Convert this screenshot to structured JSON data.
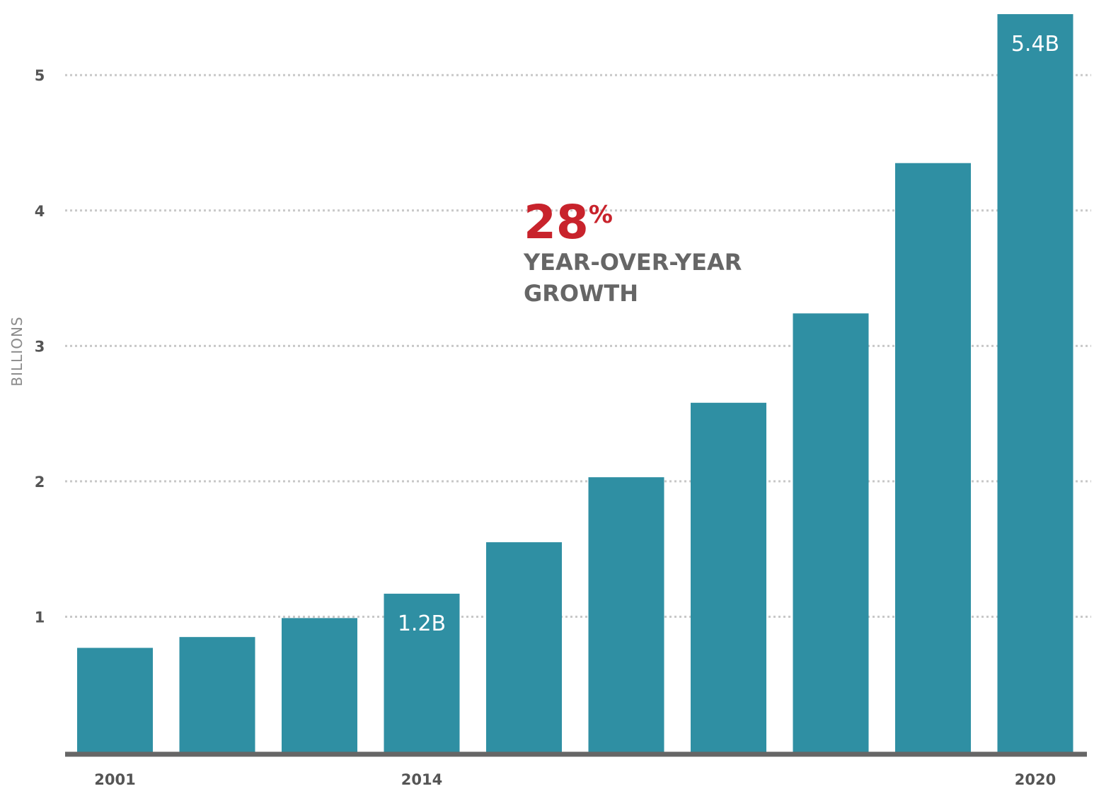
{
  "chart_data": {
    "type": "bar",
    "title": "",
    "xlabel": "",
    "ylabel": "BILLIONS",
    "ylim": [
      0,
      5.45
    ],
    "yticks": [
      1,
      2,
      3,
      4,
      5
    ],
    "grid": true,
    "x_tick_labels": [
      "2001",
      "",
      "",
      "2014",
      "",
      "",
      "",
      "",
      "",
      "2020"
    ],
    "values": [
      0.77,
      0.85,
      0.99,
      1.17,
      1.55,
      2.03,
      2.58,
      3.24,
      4.35,
      5.45
    ],
    "data_labels": [
      "",
      "",
      "",
      "1.2B",
      "",
      "",
      "",
      "",
      "",
      "5.4B"
    ],
    "bar_color": "#2f8fa3",
    "grid_color": "#c8c8c8",
    "axis_color": "#666666"
  },
  "callout": {
    "value": "28",
    "unit": "%",
    "line1": "YEAR-OVER-YEAR",
    "line2": "GROWTH",
    "value_color": "#c8232c",
    "text_color": "#666666"
  }
}
